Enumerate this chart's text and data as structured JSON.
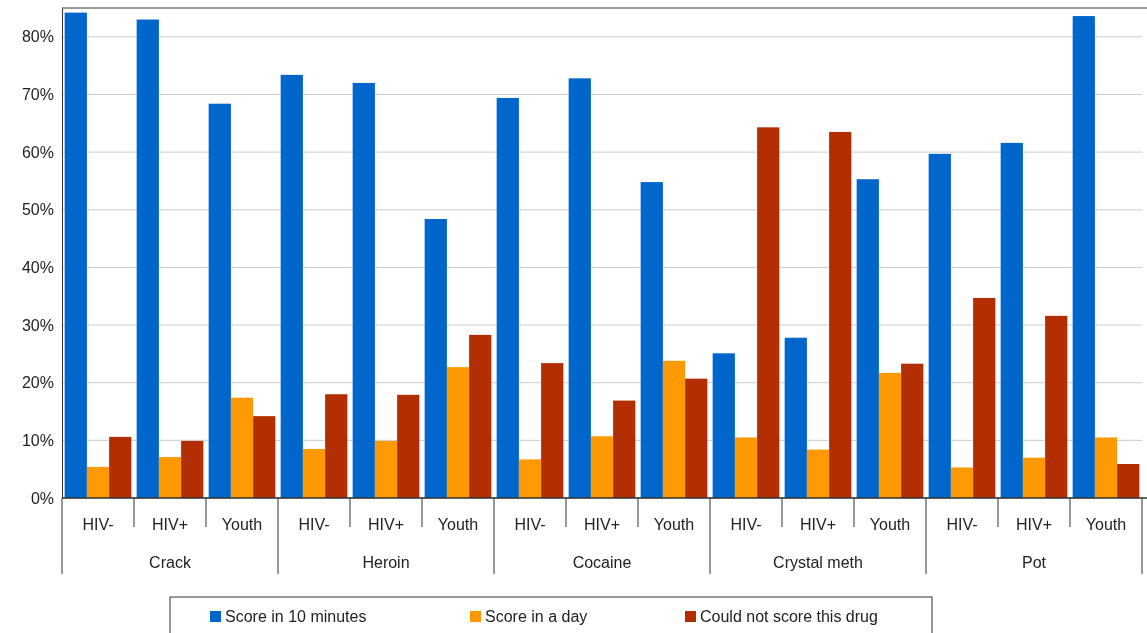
{
  "chart_data": {
    "type": "bar",
    "categories": [
      "HIV-",
      "HIV+",
      "Youth",
      "HIV-",
      "HIV+",
      "Youth",
      "HIV-",
      "HIV+",
      "Youth",
      "HIV-",
      "HIV+",
      "Youth",
      "HIV-",
      "HIV+",
      "Youth"
    ],
    "series": [
      {
        "name": "Score in 10 minutes",
        "color": "#0066cc",
        "values": [
          84.2,
          83.0,
          68.4,
          73.4,
          72.0,
          48.4,
          69.4,
          72.8,
          54.8,
          25.1,
          27.8,
          55.3,
          59.7,
          61.6,
          83.6
        ]
      },
      {
        "name": "Score in a day",
        "color": "#ff9900",
        "values": [
          5.4,
          7.1,
          17.4,
          8.5,
          9.9,
          22.7,
          6.7,
          10.7,
          23.8,
          10.5,
          8.4,
          21.7,
          5.3,
          7.0,
          10.5
        ]
      },
      {
        "name": "Could not score this drug",
        "color": "#b22e00",
        "values": [
          10.6,
          9.9,
          14.2,
          18.0,
          17.9,
          28.3,
          23.4,
          16.9,
          20.7,
          64.3,
          63.5,
          23.3,
          34.7,
          31.6,
          5.9
        ]
      }
    ],
    "annotations": [
      "Crack",
      "Heroin",
      "Cocaine",
      "Crystal meth",
      "Pot"
    ],
    "ylim": [
      0,
      85
    ],
    "yticks": [
      {
        "value": 0,
        "label": "0%"
      },
      {
        "value": 10,
        "label": "10%"
      },
      {
        "value": 20,
        "label": "20%"
      },
      {
        "value": 30,
        "label": "30%"
      },
      {
        "value": 40,
        "label": "40%"
      },
      {
        "value": 50,
        "label": "50%"
      },
      {
        "value": 60,
        "label": "60%"
      },
      {
        "value": 70,
        "label": "70%"
      },
      {
        "value": 80,
        "label": "80%"
      }
    ],
    "grid": "y",
    "legend": "bottom"
  }
}
